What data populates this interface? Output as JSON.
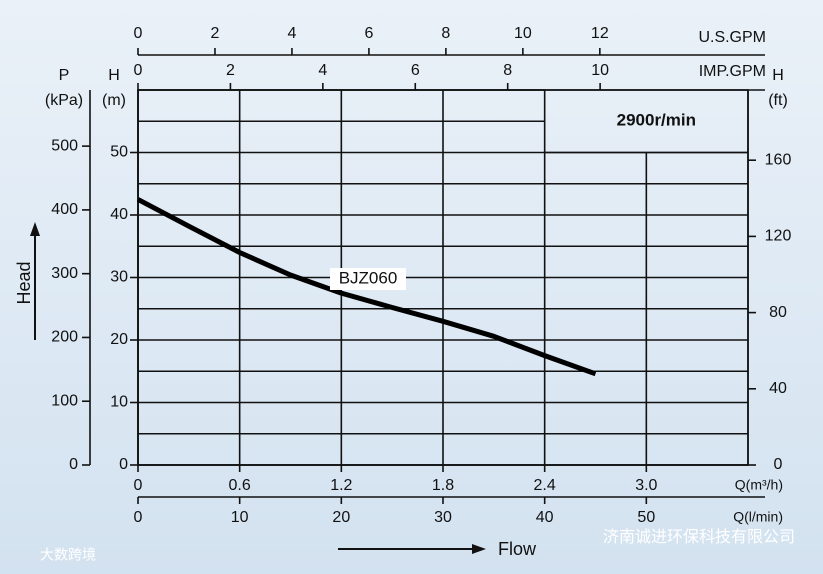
{
  "chart_data": {
    "type": "line",
    "series": [
      {
        "name": "BJZ060",
        "color": "#000000",
        "x": [
          0,
          0.3,
          0.6,
          0.9,
          1.2,
          1.5,
          1.8,
          2.1,
          2.4,
          2.7
        ],
        "values": [
          42.5,
          38.2,
          34,
          30.4,
          27.5,
          25.2,
          23,
          20.6,
          17.5,
          14.6
        ]
      }
    ],
    "x_axes": [
      {
        "label": "Q(m³/h)",
        "lim": [
          0,
          3.6
        ],
        "ticks": [
          0,
          0.6,
          1.2,
          1.8,
          2.4,
          {
            "value": 3,
            "label": "3.0"
          }
        ]
      },
      {
        "label": "Q(l/min)",
        "lim": [
          0,
          60
        ],
        "ticks": [
          0,
          10,
          20,
          30,
          40,
          50
        ]
      },
      {
        "label": "U.S.GPM",
        "lim": [
          0,
          15.85
        ],
        "ticks": [
          0,
          2,
          4,
          6,
          8,
          10,
          12
        ]
      },
      {
        "label": "IMP.GPM",
        "lim": [
          0,
          13.2
        ],
        "ticks": [
          0,
          2,
          4,
          6,
          8,
          10
        ]
      }
    ],
    "y_axes": [
      {
        "label": "H",
        "unit": "(m)",
        "lim": [
          0,
          60
        ],
        "ticks": [
          0,
          10,
          20,
          30,
          40,
          50
        ],
        "grid": [
          0,
          5,
          10,
          15,
          20,
          25,
          30,
          35,
          40,
          45,
          50,
          55,
          60
        ]
      },
      {
        "label": "P",
        "unit": "(kPa)",
        "lim": [
          0,
          588
        ],
        "ticks": [
          0,
          100,
          200,
          300,
          400,
          500
        ]
      },
      {
        "label": "H",
        "unit": "(ft)",
        "lim": [
          0,
          196.85
        ],
        "ticks": [
          0,
          40,
          80,
          120,
          160
        ]
      }
    ],
    "speed_label": "2900r/min",
    "y_title": "Head",
    "x_title": "Flow",
    "watermarks": [
      "济南诚进环保科技有限公司",
      "大数跨境"
    ]
  }
}
